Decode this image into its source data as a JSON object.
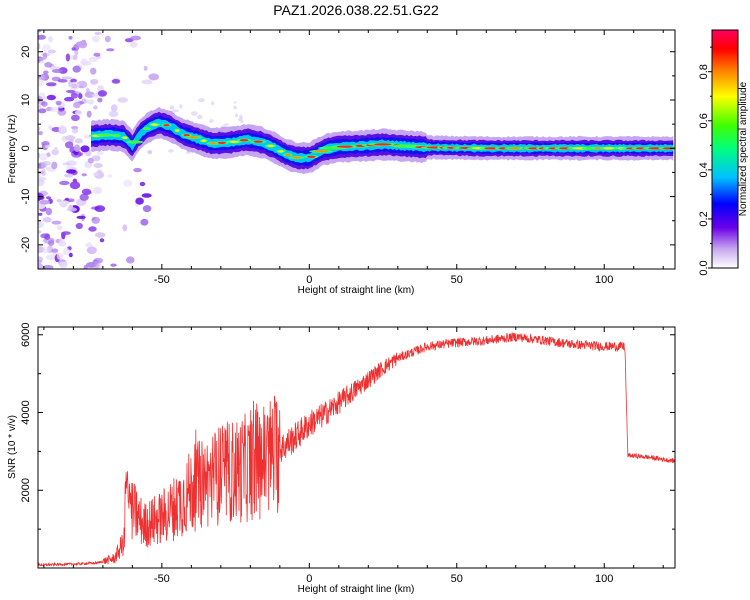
{
  "title": "PAZ1.2026.038.22.51.G22",
  "spectrogram": {
    "type": "heatmap",
    "xlabel": "Height of straight line (km)",
    "ylabel": "Frequency (Hz)",
    "xlim": [
      -92,
      124
    ],
    "ylim": [
      -25,
      24.5
    ],
    "xticks": [
      -50,
      0,
      50,
      100
    ],
    "yticks": [
      -20,
      -10,
      0,
      10,
      20
    ],
    "ridge": [
      [
        -74,
        2.5
      ],
      [
        -68,
        2.8
      ],
      [
        -63,
        2.5
      ],
      [
        -60,
        0.5
      ],
      [
        -58,
        2.5
      ],
      [
        -55,
        4.2
      ],
      [
        -51,
        5.3
      ],
      [
        -47,
        4.5
      ],
      [
        -43,
        3.0
      ],
      [
        -38,
        2.0
      ],
      [
        -33,
        1.0
      ],
      [
        -27,
        1.2
      ],
      [
        -21,
        1.8
      ],
      [
        -16,
        1.2
      ],
      [
        -12,
        0.2
      ],
      [
        -8,
        -1.2
      ],
      [
        -4,
        -2.0
      ],
      [
        0,
        -2.0
      ],
      [
        5,
        -0.3
      ],
      [
        10,
        0.3
      ],
      [
        18,
        0.5
      ],
      [
        25,
        0.8
      ],
      [
        32,
        0.5
      ],
      [
        40,
        0.2
      ],
      [
        60,
        0.0
      ],
      [
        80,
        0.0
      ],
      [
        100,
        0.0
      ],
      [
        124,
        0.0
      ]
    ],
    "colorbar": {
      "label": "Normalized spectral amplitude",
      "ticks": [
        0.0,
        0.2,
        0.4,
        0.6,
        0.8
      ],
      "colors": [
        "#ffffff",
        "#c8a8f0",
        "#6a00e8",
        "#0000ff",
        "#00c0ff",
        "#00ff80",
        "#40ff00",
        "#ffff00",
        "#ff8000",
        "#ff0000",
        "#ff0060"
      ]
    }
  },
  "chart_data": {
    "type": "line",
    "xlabel": "Height of straight line (km)",
    "ylabel": "SNR (10 * v/v)",
    "xlim": [
      -92,
      124
    ],
    "ylim": [
      0,
      6200
    ],
    "xticks": [
      -50,
      0,
      50,
      100
    ],
    "yticks": [
      2000,
      4000,
      6000
    ],
    "color": "#ee3030",
    "envelope": [
      [
        -92,
        80
      ],
      [
        -80,
        100
      ],
      [
        -72,
        130
      ],
      [
        -66,
        250
      ],
      [
        -62,
        800
      ],
      [
        -60,
        1500
      ],
      [
        -56,
        1100
      ],
      [
        -50,
        1300
      ],
      [
        -45,
        1600
      ],
      [
        -40,
        2000
      ],
      [
        -36,
        2200
      ],
      [
        -30,
        2400
      ],
      [
        -25,
        2500
      ],
      [
        -20,
        2600
      ],
      [
        -15,
        2800
      ],
      [
        -10,
        3050
      ],
      [
        -5,
        3350
      ],
      [
        0,
        3700
      ],
      [
        5,
        3950
      ],
      [
        10,
        4250
      ],
      [
        15,
        4550
      ],
      [
        20,
        4850
      ],
      [
        25,
        5150
      ],
      [
        30,
        5400
      ],
      [
        35,
        5550
      ],
      [
        40,
        5700
      ],
      [
        50,
        5800
      ],
      [
        60,
        5850
      ],
      [
        70,
        5950
      ],
      [
        80,
        5850
      ],
      [
        90,
        5750
      ],
      [
        100,
        5700
      ],
      [
        107,
        5700
      ],
      [
        108,
        2900
      ],
      [
        115,
        2850
      ],
      [
        124,
        2750
      ]
    ]
  }
}
